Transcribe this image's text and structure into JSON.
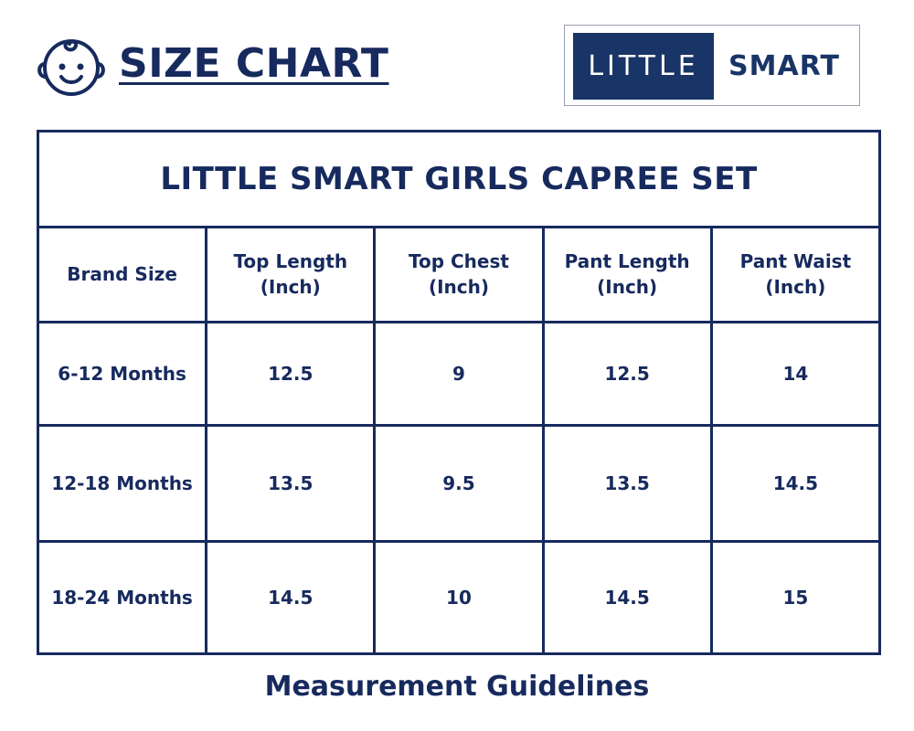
{
  "header": {
    "logo_icon": "baby-face-icon",
    "title": "SIZE CHART"
  },
  "brand": {
    "word_1": "LITTLE",
    "word_2": "SMART",
    "colors": {
      "primary": "#193466",
      "text": "#172a5e",
      "background": "#ffffff"
    }
  },
  "table": {
    "title": "LITTLE SMART GIRLS CAPREE SET",
    "headers": [
      {
        "line1": "Brand Size",
        "line2": ""
      },
      {
        "line1": "Top Length",
        "line2": "(Inch)"
      },
      {
        "line1": "Top Chest",
        "line2": "(Inch)"
      },
      {
        "line1": "Pant Length",
        "line2": "(Inch)"
      },
      {
        "line1": "Pant Waist",
        "line2": "(Inch)"
      }
    ],
    "rows": [
      [
        "6-12 Months",
        "12.5",
        "9",
        "12.5",
        "14"
      ],
      [
        "12-18 Months",
        "13.5",
        "9.5",
        "13.5",
        "14.5"
      ],
      [
        "18-24 Months",
        "14.5",
        "10",
        "14.5",
        "15"
      ]
    ]
  },
  "footer": {
    "heading": "Measurement Guidelines"
  }
}
